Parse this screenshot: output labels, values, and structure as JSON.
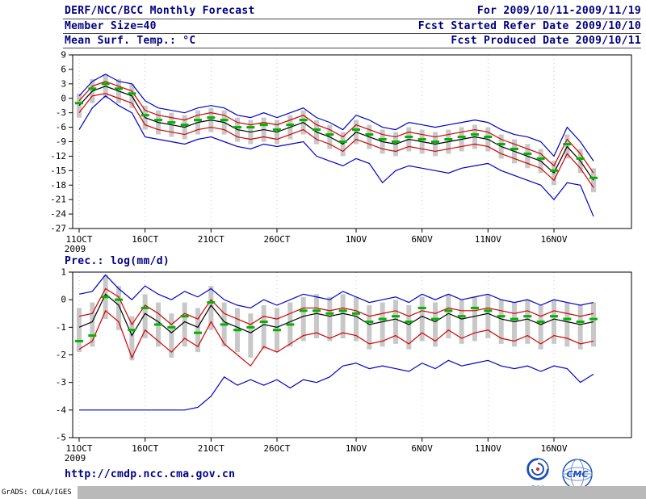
{
  "header": {
    "title": "DERF/NCC/BCC Monthly Forecast",
    "member_size": "Member Size=40",
    "for_range": "For 2009/10/11-2009/11/19",
    "fcst_started": "Fcst Started Refer Date 2009/10/10",
    "fcst_produced": "Fcst Produced Date 2009/10/11"
  },
  "footer": {
    "url": "http://cmdp.ncc.cma.gov.cn",
    "grads_credit": "GrADS: COLA/IGES",
    "bcc_label": "BCC",
    "cmc_label": "CMC"
  },
  "colors": {
    "header_text": "#000080",
    "extreme_blue": "#0000cc",
    "quartile_red": "#d40000",
    "mean_black": "#000000",
    "obs_green": "#00b400",
    "bar_gray": "#c8c8c8"
  },
  "chart_data": [
    {
      "type": "line",
      "title": "Mean Surf. Temp.: °C",
      "xlabel": "",
      "ylabel": "°C",
      "ylim": [
        -27,
        9
      ],
      "ytick_step": 3,
      "x_count": 40,
      "x_start": "2009/10/11",
      "xticks": [
        {
          "i": 0,
          "label": "11OCT",
          "sub": "2009"
        },
        {
          "i": 5,
          "label": "16OCT"
        },
        {
          "i": 10,
          "label": "21OCT"
        },
        {
          "i": 15,
          "label": "26OCT"
        },
        {
          "i": 21,
          "label": "1NOV"
        },
        {
          "i": 26,
          "label": "6NOV"
        },
        {
          "i": 31,
          "label": "11NOV"
        },
        {
          "i": 36,
          "label": "16NOV"
        }
      ],
      "series": [
        {
          "name": "ensemble max",
          "color": "#0000cc",
          "values": [
            0.5,
            3.5,
            5,
            3.5,
            3,
            -0.5,
            -2,
            -2.5,
            -3,
            -2,
            -1.5,
            -2,
            -3.5,
            -4,
            -3,
            -4,
            -3,
            -2,
            -4,
            -5,
            -6.5,
            -3.5,
            -4.5,
            -6,
            -6.5,
            -5,
            -5.5,
            -6,
            -5.5,
            -5,
            -4.5,
            -5,
            -6.5,
            -7.5,
            -8,
            -9,
            -12,
            -6,
            -9,
            -13
          ]
        },
        {
          "name": "upper quartile",
          "color": "#d40000",
          "values": [
            -0.5,
            2.5,
            3.5,
            2.5,
            1.5,
            -2.5,
            -3.5,
            -4,
            -4.5,
            -3.5,
            -3,
            -3.5,
            -5,
            -5.5,
            -5,
            -5.5,
            -4.5,
            -3.5,
            -5.5,
            -6.5,
            -8,
            -5.5,
            -6.5,
            -7.5,
            -8,
            -7,
            -7.5,
            -8,
            -7.5,
            -7,
            -6.5,
            -7,
            -8.5,
            -9.5,
            -10.5,
            -11.5,
            -14,
            -8.5,
            -11.5,
            -15.5
          ]
        },
        {
          "name": "ensemble mean",
          "color": "#000000",
          "values": [
            -1.5,
            1.5,
            2.5,
            1.5,
            0.5,
            -4,
            -5,
            -5.5,
            -6,
            -5,
            -4.5,
            -5,
            -6.5,
            -7,
            -6.5,
            -7,
            -6,
            -5,
            -7,
            -8,
            -9.5,
            -7,
            -8,
            -9,
            -9.5,
            -8.5,
            -9,
            -9.5,
            -9,
            -8.5,
            -8,
            -8.5,
            -10,
            -11,
            -12,
            -13,
            -15.5,
            -10,
            -13,
            -17
          ]
        },
        {
          "name": "lower quartile",
          "color": "#d40000",
          "values": [
            -3,
            0.5,
            1,
            0,
            -1,
            -5.5,
            -6.5,
            -7,
            -7.5,
            -6.5,
            -6,
            -6.5,
            -8,
            -8.5,
            -8,
            -8.5,
            -7.5,
            -6.5,
            -8.5,
            -9.5,
            -11,
            -8.5,
            -9.5,
            -10.5,
            -11,
            -10,
            -10.5,
            -11,
            -10.5,
            -10,
            -9.5,
            -10,
            -11.5,
            -12.5,
            -13.5,
            -14.5,
            -17,
            -11.5,
            -14.5,
            -18.5
          ]
        },
        {
          "name": "ensemble min",
          "color": "#0000cc",
          "values": [
            -6.5,
            -2,
            0.5,
            -1.5,
            -3,
            -8,
            -8.5,
            -9,
            -9.5,
            -8.5,
            -8,
            -9,
            -10,
            -10.5,
            -9.5,
            -10,
            -9.5,
            -9,
            -12,
            -13,
            -14,
            -12.5,
            -13.5,
            -17.5,
            -15,
            -14,
            -14.5,
            -15,
            -15.5,
            -14.5,
            -14,
            -13.5,
            -15,
            -16,
            -17,
            -18,
            -21,
            -17.5,
            -18,
            -24.5
          ]
        }
      ],
      "obs": {
        "name": "observation",
        "color": "#00b400",
        "values": [
          -1,
          2,
          3,
          2,
          1,
          -3.5,
          -4.5,
          -5,
          -5.5,
          -4.5,
          -4,
          -4.5,
          -6,
          -6,
          -5.5,
          -6.5,
          -5.5,
          -4.5,
          -6.5,
          -7.5,
          -9,
          -6.5,
          -7.5,
          -8.5,
          -9,
          -8,
          -8.5,
          -9,
          -8.5,
          -8,
          -7.5,
          -8,
          -9.5,
          -10.5,
          -11.5,
          -12.5,
          -15,
          -9.5,
          -12.5,
          -16.5
        ]
      },
      "bars": {
        "name": "ensemble spread",
        "color": "#c8c8c8",
        "top": [
          1,
          4,
          5,
          4,
          3,
          -1.5,
          -2.5,
          -3,
          -3.5,
          -2.5,
          -2,
          -2.5,
          -4,
          -4.5,
          -4,
          -4.5,
          -3.5,
          -2.5,
          -4.5,
          -5.5,
          -7,
          -4.5,
          -5.5,
          -6.5,
          -7,
          -6,
          -6.5,
          -7,
          -6.5,
          -6,
          -5.5,
          -6,
          -7.5,
          -8.5,
          -9.5,
          -10.5,
          -13,
          -7.5,
          -10.5,
          -14.5
        ],
        "bottom": [
          -4,
          -1,
          0,
          -1,
          -2,
          -6.5,
          -7.5,
          -8,
          -8.5,
          -7.5,
          -7,
          -7.5,
          -9,
          -9.5,
          -9,
          -9.5,
          -8.5,
          -7.5,
          -9.5,
          -10.5,
          -12,
          -9.5,
          -10.5,
          -11.5,
          -12,
          -11,
          -11.5,
          -12,
          -11.5,
          -11,
          -10.5,
          -11,
          -12.5,
          -13.5,
          -14.5,
          -15.5,
          -18,
          -12.5,
          -15.5,
          -19.5
        ]
      }
    },
    {
      "type": "line",
      "title": "Prec.: log(mm/d)",
      "xlabel": "",
      "ylabel": "log(mm/d)",
      "ylim": [
        -5,
        1
      ],
      "ytick_step": 1,
      "x_count": 40,
      "x_start": "2009/10/11",
      "xticks": [
        {
          "i": 0,
          "label": "11OCT",
          "sub": "2009"
        },
        {
          "i": 5,
          "label": "16OCT"
        },
        {
          "i": 10,
          "label": "21OCT"
        },
        {
          "i": 15,
          "label": "26OCT"
        },
        {
          "i": 21,
          "label": "1NOV"
        },
        {
          "i": 26,
          "label": "6NOV"
        },
        {
          "i": 31,
          "label": "11NOV"
        },
        {
          "i": 36,
          "label": "16NOV"
        }
      ],
      "series": [
        {
          "name": "ensemble max",
          "color": "#0000cc",
          "values": [
            0.2,
            0.3,
            0.9,
            0.4,
            0,
            0.5,
            0.2,
            0,
            0.3,
            0.1,
            0.4,
            0,
            -0.2,
            -0.3,
            0,
            -0.2,
            0,
            0.2,
            0.1,
            0,
            0.3,
            0.1,
            -0.1,
            0,
            0.1,
            -0.1,
            0.2,
            0,
            0.2,
            0,
            0.1,
            0.2,
            0,
            -0.1,
            0,
            -0.2,
            0,
            -0.1,
            -0.2,
            -0.1
          ]
        },
        {
          "name": "upper quartile",
          "color": "#d40000",
          "values": [
            -0.6,
            -0.5,
            0.4,
            0.1,
            -0.9,
            -0.2,
            -0.5,
            -0.9,
            -0.5,
            -0.7,
            0,
            -0.5,
            -0.7,
            -0.9,
            -0.6,
            -0.7,
            -0.5,
            -0.3,
            -0.3,
            -0.4,
            -0.3,
            -0.4,
            -0.6,
            -0.5,
            -0.4,
            -0.6,
            -0.4,
            -0.5,
            -0.3,
            -0.4,
            -0.4,
            -0.3,
            -0.4,
            -0.5,
            -0.4,
            -0.6,
            -0.4,
            -0.5,
            -0.6,
            -0.5
          ]
        },
        {
          "name": "ensemble mean",
          "color": "#000000",
          "values": [
            -1,
            -0.8,
            0.2,
            -0.2,
            -1.3,
            -0.5,
            -0.8,
            -1.2,
            -0.8,
            -1,
            -0.2,
            -0.8,
            -1,
            -1.2,
            -0.9,
            -1,
            -0.8,
            -0.6,
            -0.5,
            -0.6,
            -0.5,
            -0.6,
            -0.9,
            -0.8,
            -0.7,
            -0.9,
            -0.6,
            -0.8,
            -0.5,
            -0.7,
            -0.6,
            -0.5,
            -0.7,
            -0.8,
            -0.7,
            -0.9,
            -0.7,
            -0.8,
            -0.9,
            -0.8
          ]
        },
        {
          "name": "lower quartile",
          "color": "#d40000",
          "values": [
            -1.8,
            -1.5,
            -0.4,
            -0.8,
            -2.1,
            -1.1,
            -1.5,
            -1.9,
            -1.4,
            -1.7,
            -0.8,
            -1.6,
            -2,
            -2.4,
            -1.7,
            -1.9,
            -1.6,
            -1.3,
            -1.2,
            -1.4,
            -1.2,
            -1.3,
            -1.6,
            -1.5,
            -1.3,
            -1.6,
            -1.2,
            -1.5,
            -1.1,
            -1.4,
            -1.2,
            -1.1,
            -1.4,
            -1.5,
            -1.3,
            -1.6,
            -1.3,
            -1.4,
            -1.6,
            -1.5
          ]
        },
        {
          "name": "ensemble min",
          "color": "#0000cc",
          "values": [
            -4,
            -4,
            -4,
            -4,
            -4,
            -4,
            -4,
            -4,
            -4,
            -3.9,
            -3.5,
            -2.8,
            -3.1,
            -2.9,
            -3.1,
            -2.9,
            -3.2,
            -2.9,
            -3,
            -2.8,
            -2.4,
            -2.3,
            -2.5,
            -2.4,
            -2.5,
            -2.6,
            -2.3,
            -2.5,
            -2.2,
            -2.4,
            -2.3,
            -2.2,
            -2.4,
            -2.5,
            -2.4,
            -2.6,
            -2.4,
            -2.5,
            -3,
            -2.7
          ]
        }
      ],
      "obs": {
        "name": "observation",
        "color": "#00b400",
        "values": [
          -1.5,
          -1.3,
          0.1,
          0,
          -1.1,
          -0.3,
          -0.9,
          -1,
          -0.6,
          -1.2,
          -0.1,
          -0.9,
          -1.1,
          -1,
          -0.8,
          -1.1,
          -0.9,
          -0.4,
          -0.4,
          -0.5,
          -0.4,
          -0.5,
          -0.8,
          -0.7,
          -0.6,
          -0.8,
          -0.3,
          -0.7,
          -0.4,
          -0.6,
          -0.3,
          -0.4,
          -0.6,
          -0.7,
          -0.6,
          -0.8,
          -0.6,
          -0.7,
          -0.8,
          -0.7
        ]
      },
      "bars": {
        "name": "ensemble spread",
        "color": "#c8c8c8",
        "top": [
          -0.3,
          -0.1,
          0.9,
          0.5,
          -0.6,
          0.2,
          -0.1,
          -0.5,
          -0.1,
          -0.3,
          0.5,
          -0.1,
          -0.3,
          -0.5,
          -0.2,
          -0.3,
          -0.1,
          0.1,
          0.2,
          0.1,
          0.2,
          0.1,
          -0.2,
          -0.1,
          0,
          -0.2,
          0.1,
          -0.1,
          0.2,
          0,
          0.1,
          0.2,
          0,
          -0.1,
          0,
          -0.2,
          0,
          -0.1,
          -0.2,
          -0.1
        ],
        "bottom": [
          -1.9,
          -1.7,
          -0.7,
          -1.1,
          -2.2,
          -1.4,
          -1.7,
          -2.1,
          -1.7,
          -1.9,
          -1.1,
          -1.7,
          -1.9,
          -2.1,
          -1.8,
          -1.9,
          -1.7,
          -1.5,
          -1.4,
          -1.5,
          -1.4,
          -1.5,
          -1.8,
          -1.7,
          -1.6,
          -1.8,
          -1.5,
          -1.7,
          -1.4,
          -1.6,
          -1.5,
          -1.4,
          -1.6,
          -1.7,
          -1.6,
          -1.8,
          -1.6,
          -1.7,
          -1.8,
          -1.7
        ]
      }
    }
  ]
}
